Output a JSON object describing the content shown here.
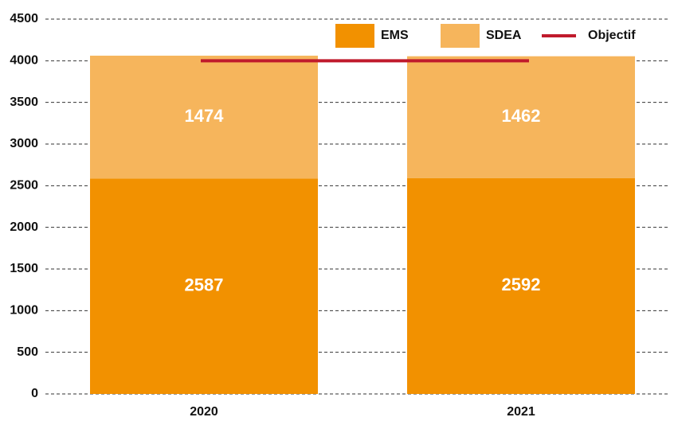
{
  "chart_data": {
    "type": "bar",
    "stacked": true,
    "categories": [
      "2020",
      "2021"
    ],
    "series": [
      {
        "name": "EMS",
        "color": "#f29100",
        "values": [
          2587,
          2592
        ]
      },
      {
        "name": "SDEA",
        "color": "#f6b55c",
        "values": [
          1474,
          1462
        ]
      },
      {
        "name": "Objectif",
        "color": "#c01a2c",
        "type": "line",
        "values": [
          4000,
          4000
        ]
      }
    ],
    "ylim": [
      0,
      4500
    ],
    "yticks": [
      0,
      500,
      1000,
      1500,
      2000,
      2500,
      3000,
      3500,
      4000,
      4500
    ],
    "grid": true,
    "legend": "top-right"
  }
}
